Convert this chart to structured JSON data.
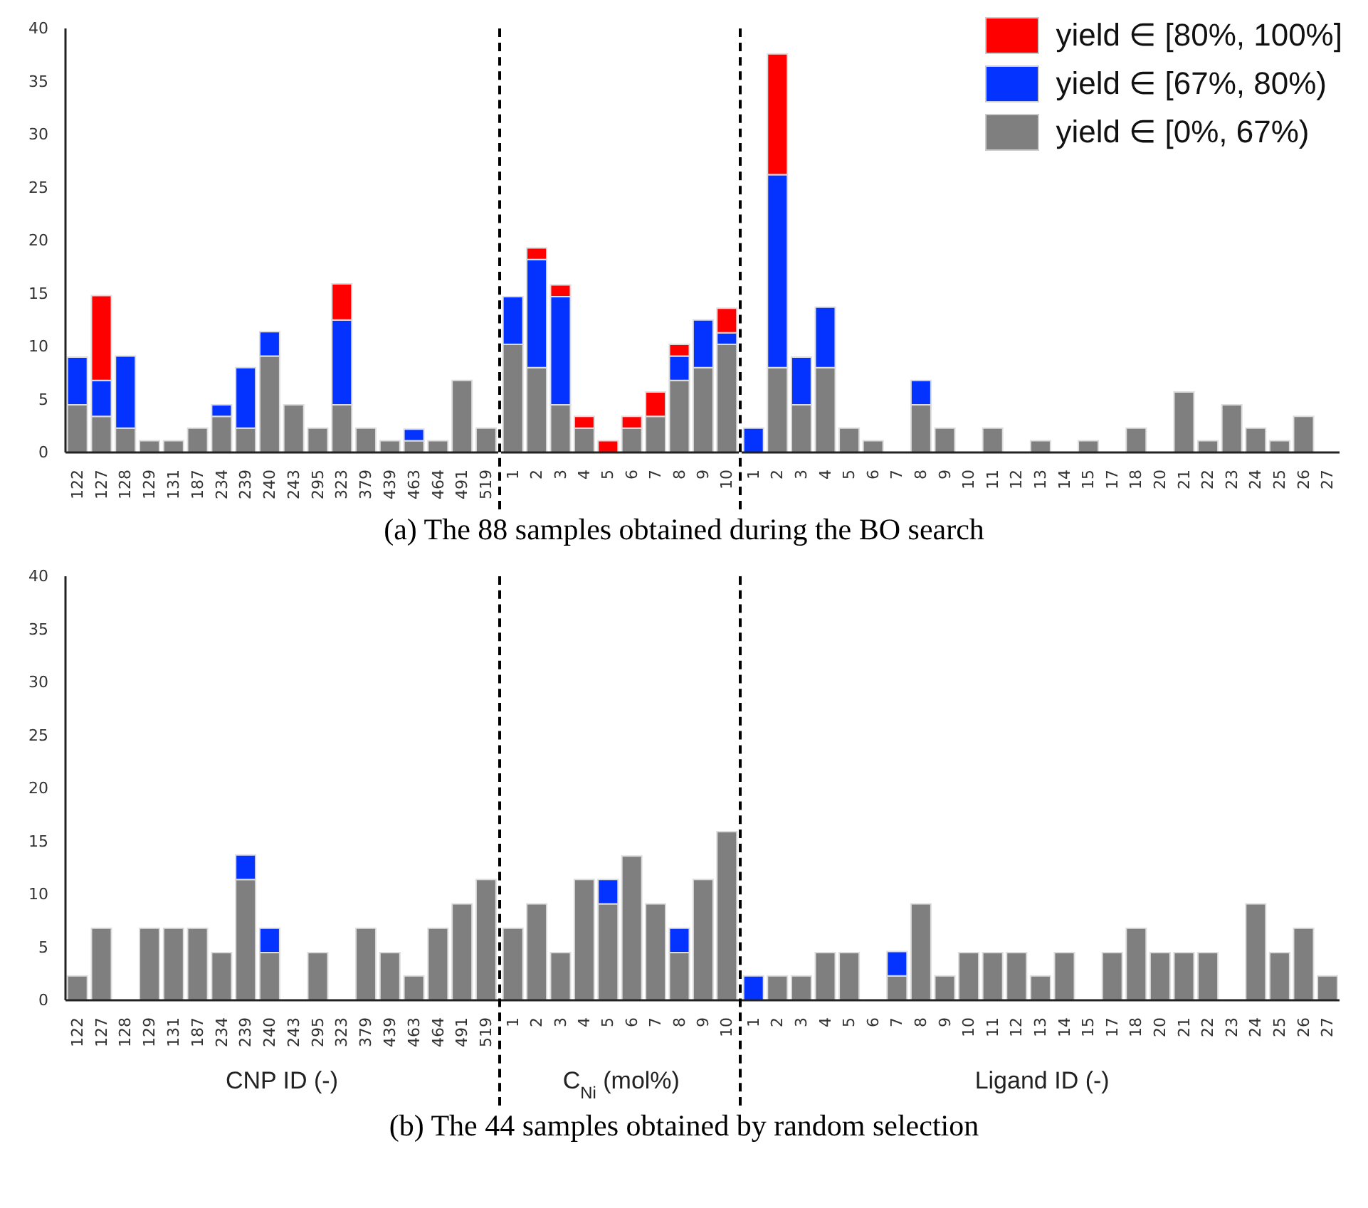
{
  "chart_data": [
    {
      "type": "bar",
      "stacked": true,
      "title": "(a) The 88 samples obtained during the BO search",
      "categories": [
        "122",
        "127",
        "128",
        "129",
        "131",
        "187",
        "234",
        "239",
        "240",
        "243",
        "295",
        "323",
        "379",
        "439",
        "463",
        "464",
        "491",
        "519"
      ],
      "ylim": [
        0,
        40
      ],
      "yticks": [
        0,
        5,
        10,
        15,
        20,
        25,
        30,
        35,
        40
      ],
      "series": [
        {
          "color": "#7f7f7f",
          "values": [
            4.5,
            3.4,
            2.3,
            1.1,
            1.1,
            2.3,
            3.4,
            2.3,
            9.1,
            4.5,
            2.3,
            4.5,
            2.3,
            1.1,
            1.1,
            1.1,
            6.8,
            2.3
          ]
        },
        {
          "color": "#0433ff",
          "values": [
            4.5,
            3.4,
            6.8,
            0,
            0,
            0,
            1.1,
            5.7,
            2.3,
            0,
            0,
            8.0,
            0,
            0,
            1.1,
            0,
            0,
            0
          ]
        },
        {
          "color": "#ff0000",
          "values": [
            0,
            8.0,
            0,
            0,
            0,
            0,
            0,
            0,
            0,
            0,
            0,
            3.4,
            0,
            0,
            0,
            0,
            0,
            0
          ]
        }
      ]
    },
    {
      "type": "bar",
      "stacked": true,
      "tick_labels": "x",
      "categories": [
        "1",
        "2",
        "3",
        "4",
        "5",
        "6",
        "7",
        "8",
        "9",
        "10"
      ],
      "ylim": [
        0,
        40
      ],
      "series": [
        {
          "color": "#7f7f7f",
          "values": [
            10.2,
            8.0,
            4.5,
            2.3,
            0,
            2.3,
            3.4,
            6.8,
            8.0,
            10.2
          ]
        },
        {
          "color": "#0433ff",
          "values": [
            4.5,
            10.2,
            10.2,
            0,
            0,
            0,
            0,
            2.3,
            4.5,
            1.1
          ]
        },
        {
          "color": "#ff0000",
          "values": [
            0,
            1.1,
            1.1,
            1.1,
            1.1,
            1.1,
            2.3,
            1.1,
            0,
            2.3
          ]
        }
      ]
    },
    {
      "type": "bar",
      "stacked": true,
      "tick_labels": "x",
      "legend": "top right",
      "categories": [
        "1",
        "2",
        "3",
        "4",
        "5",
        "6",
        "7",
        "8",
        "9",
        "10",
        "11",
        "12",
        "13",
        "14",
        "15",
        "17",
        "18",
        "20",
        "21",
        "22",
        "23",
        "24",
        "25",
        "26",
        "27"
      ],
      "ylim": [
        0,
        40
      ],
      "series": [
        {
          "name": "yield ∈ [0%, 67%)",
          "color": "#7f7f7f",
          "values": [
            0,
            8.0,
            4.5,
            8.0,
            2.3,
            1.1,
            0,
            4.5,
            2.3,
            0,
            2.3,
            0,
            1.1,
            0,
            1.1,
            0,
            2.3,
            0,
            5.7,
            1.1,
            4.5,
            2.3,
            1.1,
            3.4,
            0
          ]
        },
        {
          "name": "yield ∈ [67%, 80%)",
          "color": "#0433ff",
          "values": [
            2.3,
            18.2,
            4.5,
            5.7,
            0,
            0,
            0,
            2.3,
            0,
            0,
            0,
            0,
            0,
            0,
            0,
            0,
            0,
            0,
            0,
            0,
            0,
            0,
            0,
            0,
            0
          ]
        },
        {
          "name": "yield ∈ [80%, 100%]",
          "color": "#ff0000",
          "values": [
            0,
            11.4,
            0,
            0,
            0,
            0,
            0,
            0,
            0,
            0,
            0,
            0,
            0,
            0,
            0,
            0,
            0,
            0,
            0,
            0,
            0,
            0,
            0,
            0,
            0
          ]
        }
      ]
    },
    {
      "type": "bar",
      "stacked": true,
      "title": "(b) The 44 samples obtained by random selection",
      "xlabel": "CNP ID (-)",
      "categories": [
        "122",
        "127",
        "128",
        "129",
        "131",
        "187",
        "234",
        "239",
        "240",
        "243",
        "295",
        "323",
        "379",
        "439",
        "463",
        "464",
        "491",
        "519"
      ],
      "ylim": [
        0,
        40
      ],
      "yticks": [
        0,
        5,
        10,
        15,
        20,
        25,
        30,
        35,
        40
      ],
      "series": [
        {
          "color": "#7f7f7f",
          "values": [
            2.3,
            6.8,
            0,
            6.8,
            6.8,
            6.8,
            4.5,
            11.4,
            4.5,
            0,
            4.5,
            0,
            6.8,
            4.5,
            2.3,
            6.8,
            9.1,
            11.4
          ]
        },
        {
          "color": "#0433ff",
          "values": [
            0,
            0,
            0,
            0,
            0,
            0,
            0,
            2.3,
            2.3,
            0,
            0,
            0,
            0,
            0,
            0,
            0,
            0,
            0
          ]
        }
      ]
    },
    {
      "type": "bar",
      "stacked": true,
      "tick_labels": "x",
      "xlabel": "C$_{Ni}$ (mol%)",
      "categories": [
        "1",
        "2",
        "3",
        "4",
        "5",
        "6",
        "7",
        "8",
        "9",
        "10"
      ],
      "ylim": [
        0,
        40
      ],
      "series": [
        {
          "color": "#7f7f7f",
          "values": [
            6.8,
            9.1,
            4.5,
            11.4,
            9.1,
            13.6,
            9.1,
            4.5,
            11.4,
            15.9
          ]
        },
        {
          "color": "#0433ff",
          "values": [
            0,
            0,
            0,
            0,
            2.3,
            0,
            0,
            2.3,
            0,
            0
          ]
        }
      ]
    },
    {
      "type": "bar",
      "stacked": true,
      "tick_labels": "x",
      "xlabel": "Ligand ID (-)",
      "categories": [
        "1",
        "2",
        "3",
        "4",
        "5",
        "6",
        "7",
        "8",
        "9",
        "10",
        "11",
        "12",
        "13",
        "14",
        "15",
        "17",
        "18",
        "20",
        "21",
        "22",
        "23",
        "24",
        "25",
        "26",
        "27"
      ],
      "ylim": [
        0,
        40
      ],
      "series": [
        {
          "color": "#7f7f7f",
          "values": [
            0,
            2.3,
            2.3,
            4.5,
            4.5,
            0,
            2.3,
            9.1,
            2.3,
            4.5,
            4.5,
            4.5,
            2.3,
            4.5,
            0,
            4.5,
            6.8,
            4.5,
            4.5,
            4.5,
            0,
            9.1,
            4.5,
            6.8,
            2.3
          ]
        },
        {
          "color": "#0433ff",
          "values": [
            2.3,
            0,
            0,
            0,
            0,
            0,
            2.3,
            0,
            0,
            0,
            0,
            0,
            0,
            0,
            0,
            0,
            0,
            0,
            0,
            0,
            0,
            0,
            0,
            0,
            0
          ]
        }
      ]
    }
  ]
}
